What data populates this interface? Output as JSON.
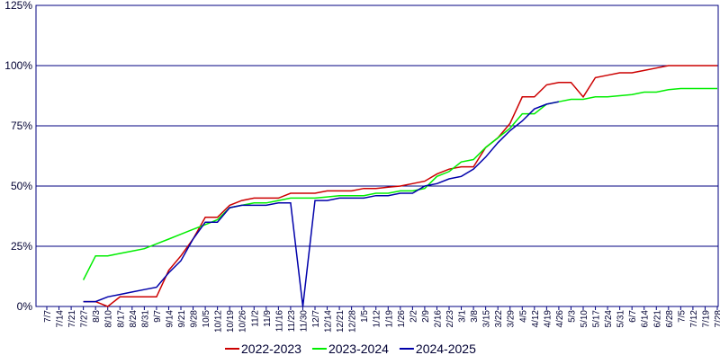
{
  "chart_data": {
    "type": "line",
    "categories": [
      "7/7",
      "7/14",
      "7/21",
      "7/27",
      "8/3",
      "8/10",
      "8/17",
      "8/24",
      "8/31",
      "9/7",
      "9/14",
      "9/21",
      "9/28",
      "10/5",
      "10/12",
      "10/19",
      "10/26",
      "11/2",
      "11/9",
      "11/16",
      "11/23",
      "11/30",
      "12/7",
      "12/14",
      "12/21",
      "12/28",
      "1/5",
      "1/12",
      "1/19",
      "1/26",
      "2/2",
      "2/9",
      "2/16",
      "2/23",
      "3/1",
      "3/8",
      "3/15",
      "3/22",
      "3/29",
      "4/5",
      "4/12",
      "4/19",
      "4/26",
      "5/3",
      "5/10",
      "5/17",
      "5/24",
      "5/31",
      "6/7",
      "6/14",
      "6/21",
      "6/28",
      "7/5",
      "7/12",
      "7/19",
      "7/28"
    ],
    "series": [
      {
        "name": "2022-2023",
        "color": "#cc0000",
        "values": [
          null,
          null,
          null,
          2,
          2,
          0,
          4,
          4,
          4,
          4,
          15,
          21,
          28,
          37,
          37,
          42,
          44,
          45,
          45,
          45,
          47,
          47,
          47,
          48,
          48,
          48,
          49,
          49,
          49.5,
          50,
          51,
          52,
          55,
          57,
          58,
          58,
          66,
          70,
          76,
          87,
          87,
          92,
          93,
          93,
          87,
          95,
          96,
          97,
          97,
          98,
          99,
          100,
          100,
          100,
          100,
          100
        ]
      },
      {
        "name": "2023-2024",
        "color": "#00ee00",
        "values": [
          null,
          null,
          null,
          11,
          21,
          21,
          22,
          23,
          24,
          26,
          28,
          30,
          32,
          34,
          36,
          41,
          42,
          43,
          43,
          44,
          45,
          45,
          45,
          45.5,
          46,
          46,
          46,
          47,
          47,
          48,
          48,
          49,
          54,
          56,
          60,
          61,
          66,
          70,
          74,
          80,
          80,
          84,
          85,
          86,
          86,
          87,
          87,
          87.5,
          88,
          89,
          89,
          90,
          90.5,
          90.5,
          90.5,
          90.5
        ]
      },
      {
        "name": "2024-2025",
        "color": "#0000aa",
        "values": [
          null,
          null,
          null,
          2,
          2,
          4,
          5,
          6,
          7,
          8,
          14,
          19,
          28,
          35,
          35,
          41,
          42,
          42,
          42,
          43,
          43,
          0,
          44,
          44,
          45,
          45,
          45,
          46,
          46,
          47,
          47,
          50,
          51,
          53,
          54,
          57,
          62,
          68,
          73,
          77,
          82,
          84,
          85,
          null,
          null,
          null,
          null,
          null,
          null,
          null,
          null,
          null,
          null,
          null,
          null,
          null
        ]
      }
    ],
    "ylim": [
      0,
      125
    ],
    "yticks": [
      {
        "value": 0,
        "label": "0%"
      },
      {
        "value": 25,
        "label": "25%"
      },
      {
        "value": 50,
        "label": "50%"
      },
      {
        "value": 75,
        "label": "75%"
      },
      {
        "value": 100,
        "label": "100%"
      },
      {
        "value": 125,
        "label": "125%"
      }
    ],
    "grid": true,
    "legend": "bottom"
  }
}
